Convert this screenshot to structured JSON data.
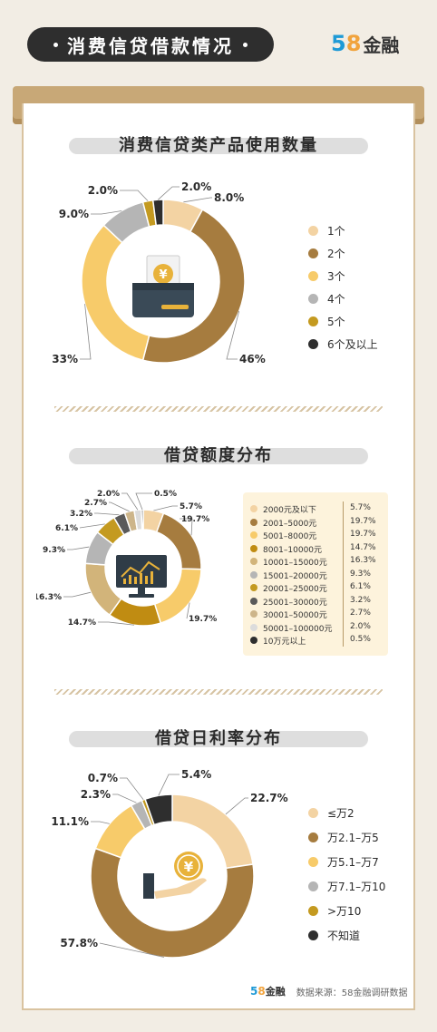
{
  "header": {
    "title": "消费信贷借款情况",
    "logo_num_a": "5",
    "logo_num_b": "8",
    "logo_text": "金融"
  },
  "chart_data": [
    {
      "type": "pie",
      "title": "消费信贷类产品使用数量",
      "categories": [
        "1个",
        "2个",
        "3个",
        "4个",
        "5个",
        "6个及以上"
      ],
      "values": [
        8.0,
        46,
        33,
        9.0,
        2.0,
        2.0
      ],
      "value_labels": [
        "8.0%",
        "46%",
        "33%",
        "9.0%",
        "2.0%",
        "2.0%"
      ],
      "colors": [
        "#f3d3a3",
        "#a67c3f",
        "#f7cb6a",
        "#b5b5b5",
        "#c49a20",
        "#2e2e2e"
      ],
      "legend": "right"
    },
    {
      "type": "pie",
      "title": "借贷额度分布",
      "categories": [
        "2000元及以下",
        "2001–5000元",
        "5001–8000元",
        "8001–10000元",
        "10001–15000元",
        "15001–20000元",
        "20001–25000元",
        "25001–30000元",
        "30001–50000元",
        "50001–100000元",
        "10万元以上"
      ],
      "values": [
        5.7,
        19.7,
        19.7,
        14.7,
        16.3,
        9.3,
        6.1,
        3.2,
        2.7,
        2.0,
        0.5
      ],
      "value_labels": [
        "5.7%",
        "19.7%",
        "19.7%",
        "14.7%",
        "16.3%",
        "9.3%",
        "6.1%",
        "3.2%",
        "2.7%",
        "2.0%",
        "0.5%"
      ],
      "colors": [
        "#f3d3a3",
        "#a67c3f",
        "#f7cb6a",
        "#c08c12",
        "#d2b47a",
        "#b5b5b5",
        "#c49a20",
        "#5a5a5a",
        "#cdb58a",
        "#dcdcdc",
        "#2e2e2e"
      ],
      "legend": "right"
    },
    {
      "type": "pie",
      "title": "借贷日利率分布",
      "categories": [
        "≤万2",
        "万2.1–万5",
        "万5.1–万7",
        "万7.1–万10",
        ">万10",
        "不知道"
      ],
      "values": [
        22.7,
        57.8,
        11.1,
        2.3,
        0.7,
        5.4
      ],
      "value_labels": [
        "22.7%",
        "57.8%",
        "11.1%",
        "2.3%",
        "0.7%",
        "5.4%"
      ],
      "colors": [
        "#f3d3a3",
        "#a67c3f",
        "#f7cb6a",
        "#b5b5b5",
        "#c49a20",
        "#2e2e2e"
      ],
      "legend": "right"
    }
  ],
  "footer": {
    "logo_num_a": "5",
    "logo_num_b": "8",
    "logo_text": "金融",
    "source": "数据来源：58金融调研数据"
  }
}
